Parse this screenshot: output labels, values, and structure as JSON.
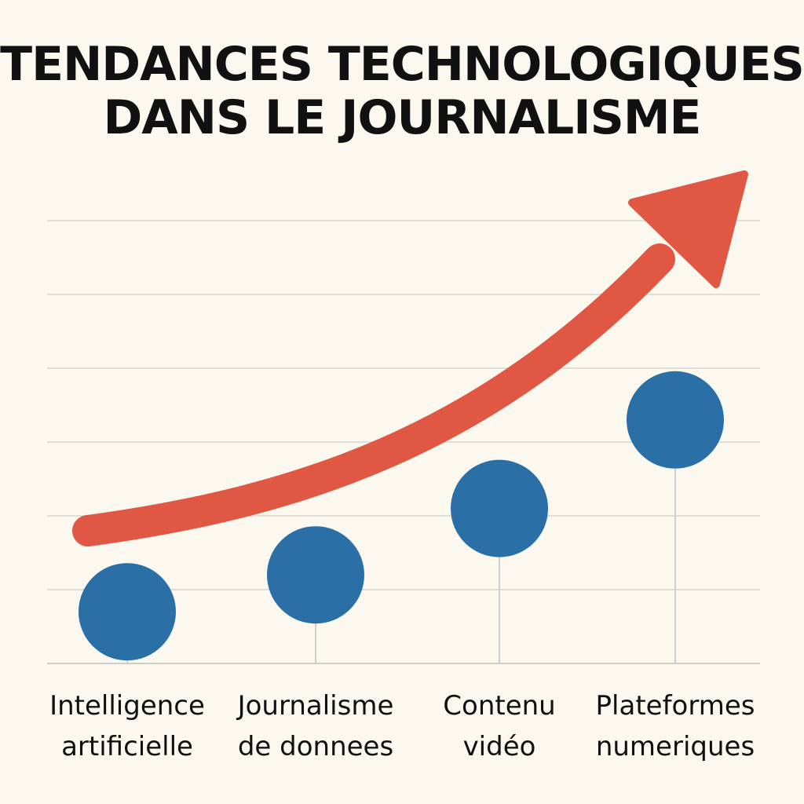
{
  "title_lines": [
    "TENDANCES TECHNOLOGIQUES",
    "DANS LE JOURNALISME"
  ],
  "chart_data": {
    "type": "scatter",
    "title": "TENDANCES TECHNOLOGIQUES DANS LE JOURNALISME",
    "categories": [
      [
        "Intelligence",
        "artificielle"
      ],
      [
        "Journalisme",
        "de donnees"
      ],
      [
        "Contenu",
        "vidéo"
      ],
      [
        "Plateformes",
        "numeriques"
      ]
    ],
    "values": [
      0.7,
      1.2,
      2.1,
      3.3
    ],
    "ylim": [
      0,
      6
    ],
    "grid": true,
    "trend_arrow": "increasing",
    "colors": {
      "points": "#2A6FA6",
      "arrow": "#E05843",
      "grid": "#D8D5CC",
      "stems": "#CFCFCF",
      "text": "#111111"
    }
  }
}
